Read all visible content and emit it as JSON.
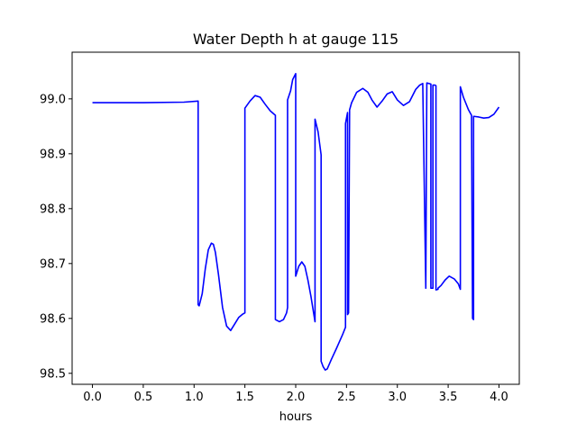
{
  "chart_data": {
    "type": "line",
    "title": "Water Depth h at gauge 115",
    "xlabel": "hours",
    "ylabel": "",
    "xlim": [
      -0.2,
      4.2
    ],
    "ylim": [
      98.48,
      99.085
    ],
    "xticks": [
      0.0,
      0.5,
      1.0,
      1.5,
      2.0,
      2.5,
      3.0,
      3.5,
      4.0
    ],
    "xtick_labels": [
      "0.0",
      "0.5",
      "1.0",
      "1.5",
      "2.0",
      "2.5",
      "3.0",
      "3.5",
      "4.0"
    ],
    "yticks": [
      98.5,
      98.6,
      98.7,
      98.8,
      98.9,
      99.0
    ],
    "ytick_labels": [
      "98.5",
      "98.6",
      "98.7",
      "98.8",
      "98.9",
      "99.0"
    ],
    "grid": false,
    "legend": "none",
    "series": [
      {
        "color": "#0000ff",
        "x": [
          0.0,
          0.5,
          0.9,
          1.04,
          1.04,
          1.05,
          1.08,
          1.11,
          1.14,
          1.17,
          1.19,
          1.21,
          1.24,
          1.28,
          1.32,
          1.36,
          1.4,
          1.44,
          1.48,
          1.5,
          1.5,
          1.55,
          1.6,
          1.65,
          1.7,
          1.75,
          1.8,
          1.8,
          1.84,
          1.88,
          1.91,
          1.92,
          1.92,
          1.95,
          1.97,
          2.0,
          2.0,
          2.03,
          2.06,
          2.09,
          2.12,
          2.15,
          2.19,
          2.19,
          2.22,
          2.25,
          2.25,
          2.27,
          2.29,
          2.31,
          2.35,
          2.4,
          2.46,
          2.49,
          2.49,
          2.5,
          2.51,
          2.51,
          2.52,
          2.53,
          2.53,
          2.55,
          2.6,
          2.66,
          2.71,
          2.75,
          2.8,
          2.85,
          2.9,
          2.95,
          3.0,
          3.06,
          3.12,
          3.18,
          3.22,
          3.25,
          3.28,
          3.28,
          3.29,
          3.29,
          3.33,
          3.33,
          3.35,
          3.35,
          3.37,
          3.38,
          3.38,
          3.4,
          3.4,
          3.43,
          3.47,
          3.51,
          3.56,
          3.6,
          3.62,
          3.62,
          3.65,
          3.7,
          3.73,
          3.74,
          3.75,
          3.75,
          3.76,
          3.76,
          3.8,
          3.85,
          3.9,
          3.95,
          4.0
        ],
        "y": [
          98.993,
          98.993,
          98.994,
          98.996,
          98.625,
          98.623,
          98.645,
          98.69,
          98.725,
          98.737,
          98.735,
          98.72,
          98.68,
          98.62,
          98.586,
          98.578,
          98.59,
          98.602,
          98.608,
          98.61,
          98.983,
          98.996,
          99.006,
          99.003,
          98.99,
          98.978,
          98.97,
          98.598,
          98.594,
          98.598,
          98.61,
          98.62,
          98.998,
          99.015,
          99.035,
          99.046,
          98.677,
          98.695,
          98.703,
          98.695,
          98.67,
          98.64,
          98.594,
          98.963,
          98.94,
          98.898,
          98.522,
          98.512,
          98.506,
          98.508,
          98.525,
          98.545,
          98.57,
          98.584,
          98.955,
          98.965,
          98.975,
          98.607,
          98.61,
          98.975,
          98.98,
          98.993,
          99.012,
          99.019,
          99.012,
          98.998,
          98.985,
          98.996,
          99.009,
          99.013,
          98.998,
          98.988,
          98.995,
          99.017,
          99.025,
          99.028,
          98.655,
          98.655,
          99.028,
          99.029,
          99.027,
          98.655,
          98.655,
          99.025,
          99.025,
          99.024,
          98.652,
          98.653,
          98.655,
          98.66,
          98.67,
          98.677,
          98.672,
          98.663,
          98.653,
          99.022,
          99.003,
          98.98,
          98.97,
          98.6,
          98.598,
          98.968,
          98.968,
          98.968,
          98.967,
          98.965,
          98.966,
          98.972,
          98.985
        ]
      }
    ]
  }
}
